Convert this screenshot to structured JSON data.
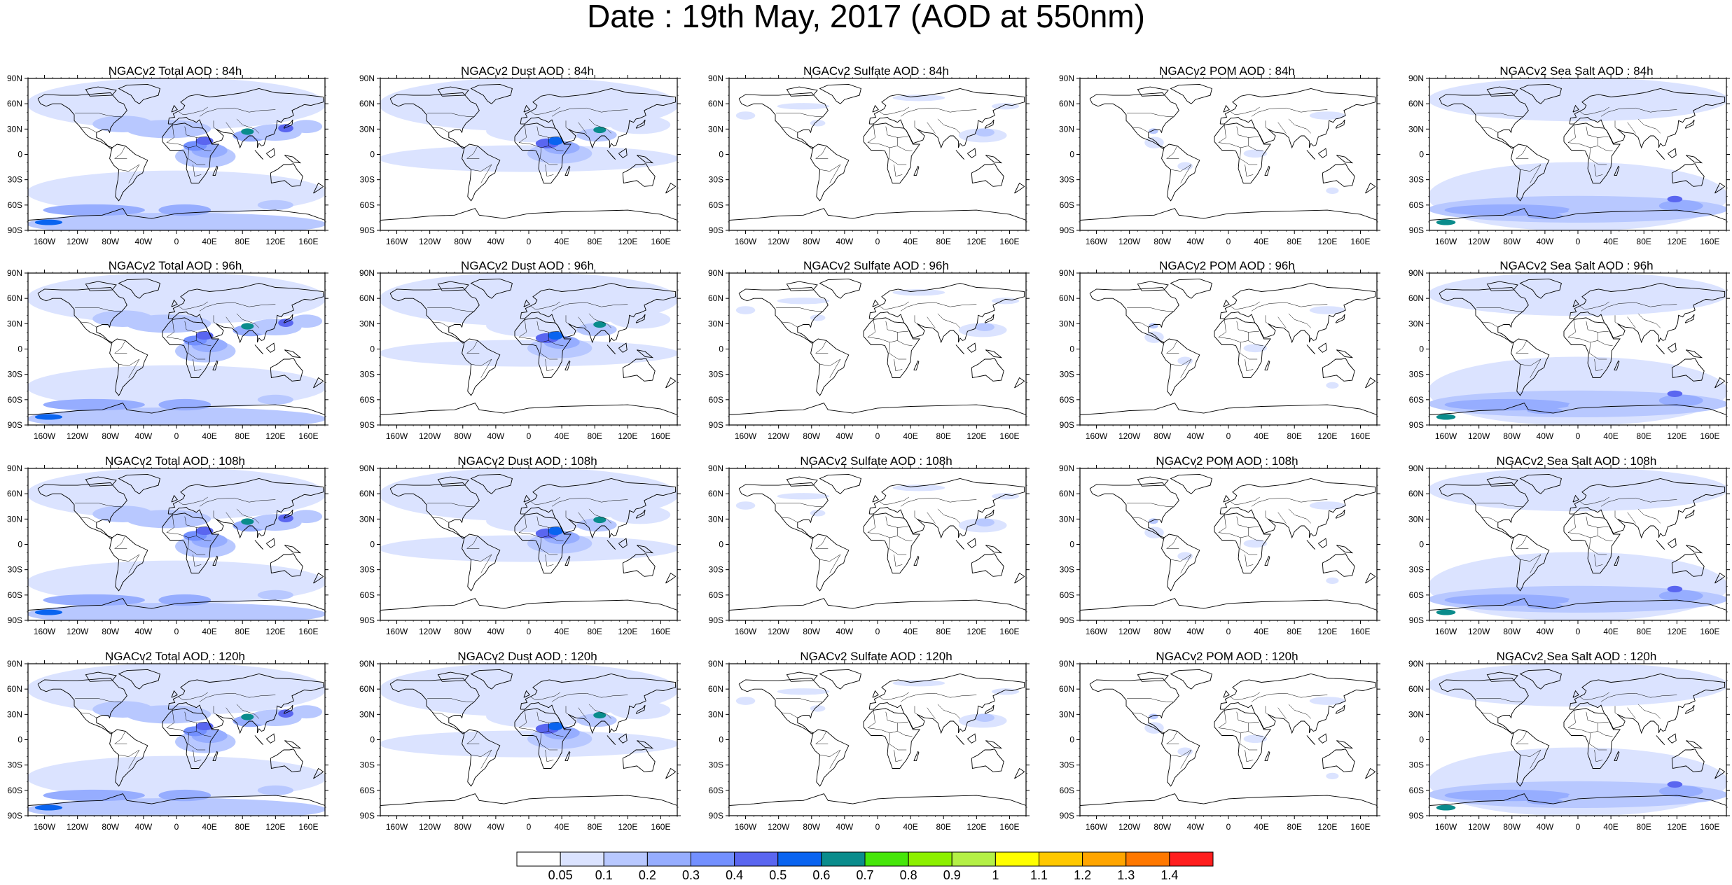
{
  "title": "Date : 19th May, 2017 (AOD at 550nm)",
  "lat_labels": [
    "90N",
    "60N",
    "30N",
    "0",
    "30S",
    "60S",
    "90S"
  ],
  "lon_labels": [
    "160W",
    "120W",
    "80W",
    "40W",
    "0",
    "40E",
    "80E",
    "120E",
    "160E"
  ],
  "panels": [
    {
      "title": "NGACv2 Total AOD : 84h",
      "species": "total"
    },
    {
      "title": "NGACv2 Dust AOD : 84h",
      "species": "dust"
    },
    {
      "title": "NGACv2 Sulfate AOD : 84h",
      "species": "sulfate"
    },
    {
      "title": "NGACv2 POM AOD : 84h",
      "species": "pom"
    },
    {
      "title": "NGACv2 Sea Salt AOD : 84h",
      "species": "seasalt"
    },
    {
      "title": "NGACv2 Total AOD : 96h",
      "species": "total"
    },
    {
      "title": "NGACv2 Dust AOD : 96h",
      "species": "dust"
    },
    {
      "title": "NGACv2 Sulfate AOD : 96h",
      "species": "sulfate"
    },
    {
      "title": "NGACv2 POM AOD : 96h",
      "species": "pom"
    },
    {
      "title": "NGACv2 Sea Salt AOD : 96h",
      "species": "seasalt"
    },
    {
      "title": "NGACv2 Total AOD : 108h",
      "species": "total"
    },
    {
      "title": "NGACv2 Dust AOD : 108h",
      "species": "dust"
    },
    {
      "title": "NGACv2 Sulfate AOD : 108h",
      "species": "sulfate"
    },
    {
      "title": "NGACv2 POM AOD : 108h",
      "species": "pom"
    },
    {
      "title": "NGACv2 Sea Salt AOD : 108h",
      "species": "seasalt"
    },
    {
      "title": "NGACv2 Total AOD : 120h",
      "species": "total"
    },
    {
      "title": "NGACv2 Dust AOD : 120h",
      "species": "dust"
    },
    {
      "title": "NGACv2 Sulfate AOD : 120h",
      "species": "sulfate"
    },
    {
      "title": "NGACv2 POM AOD : 120h",
      "species": "pom"
    },
    {
      "title": "NGACv2 Sea Salt  AOD : 120h",
      "species": "seasalt"
    }
  ],
  "colorbar": {
    "labels": [
      "0.05",
      "0.1",
      "0.2",
      "0.3",
      "0.4",
      "0.5",
      "0.6",
      "0.7",
      "0.8",
      "0.9",
      "1",
      "1.1",
      "1.2",
      "1.3",
      "1.4"
    ],
    "colors": [
      "#ffffff",
      "#dbe3ff",
      "#b8c8ff",
      "#96adff",
      "#7390ff",
      "#5a66f0",
      "#0a64f0",
      "#0a8c8c",
      "#46e60a",
      "#8cf000",
      "#b4f046",
      "#ffff00",
      "#ffc800",
      "#ffa500",
      "#ff7800",
      "#ff1e1e"
    ]
  }
}
